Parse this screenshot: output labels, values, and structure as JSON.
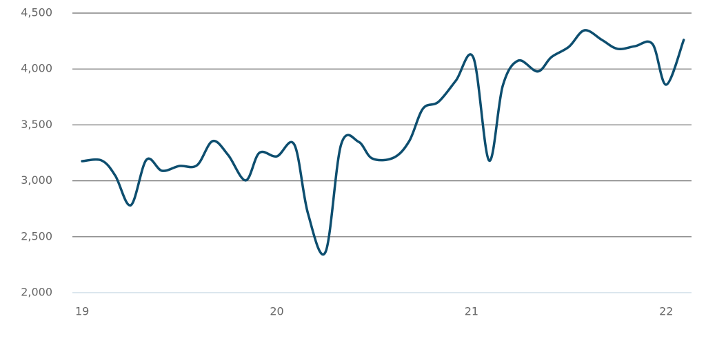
{
  "chart_data": {
    "type": "line",
    "x": [
      19.0,
      19.1,
      19.17,
      19.25,
      19.33,
      19.41,
      19.5,
      19.59,
      19.67,
      19.75,
      19.84,
      19.91,
      20.0,
      20.09,
      20.16,
      20.25,
      20.33,
      20.42,
      20.49,
      20.6,
      20.68,
      20.75,
      20.83,
      20.92,
      21.01,
      21.09,
      21.16,
      21.24,
      21.34,
      21.41,
      21.5,
      21.58,
      21.67,
      21.75,
      21.84,
      21.93,
      22.0,
      22.09
    ],
    "values": [
      3176,
      3182,
      3047,
      2782,
      3188,
      3090,
      3133,
      3139,
      3355,
      3231,
      3004,
      3250,
      3219,
      3324,
      2708,
      2363,
      3324,
      3349,
      3200,
      3207,
      3355,
      3644,
      3706,
      3897,
      4100,
      3182,
      3847,
      4075,
      3978,
      4106,
      4198,
      4346,
      4260,
      4180,
      4204,
      4223,
      3860,
      4260
    ],
    "color": "#0d4e6f",
    "xlim": [
      18.95,
      22.13
    ],
    "xticks": [
      19,
      20,
      21,
      22
    ],
    "ylim": [
      2000,
      4500
    ],
    "yticks": [
      {
        "value": 2000,
        "label": "2,000"
      },
      {
        "value": 2500,
        "label": "2,500"
      },
      {
        "value": 3000,
        "label": "3,000"
      },
      {
        "value": 3500,
        "label": "3,500"
      },
      {
        "value": 4000,
        "label": "4,000"
      },
      {
        "value": 4500,
        "label": "4,500"
      }
    ],
    "grid": true
  }
}
